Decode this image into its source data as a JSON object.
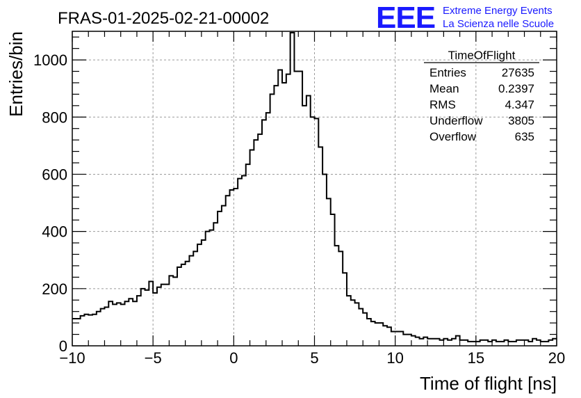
{
  "header": {
    "title": "FRAS-01-2025-02-21-00002",
    "logo_text": "EEE",
    "org_line1": "Extreme Energy Events",
    "org_line2": "La Scienza nelle Scuole",
    "logo_color": "#1a1aff"
  },
  "stats": {
    "name": "TimeOfFlight",
    "rows": [
      {
        "label": "Entries",
        "value": "27635"
      },
      {
        "label": "Mean",
        "value": "0.2397"
      },
      {
        "label": "RMS",
        "value": "4.347"
      },
      {
        "label": "Underflow",
        "value": "3805"
      },
      {
        "label": "Overflow",
        "value": "635"
      }
    ]
  },
  "chart_data": {
    "type": "histogram",
    "title": "FRAS-01-2025-02-21-00002",
    "xlabel": "Time of flight [ns]",
    "ylabel": "Entries/bin",
    "xlim": [
      -10,
      20
    ],
    "ylim": [
      0,
      1100
    ],
    "grid": true,
    "line_color": "#000000",
    "bin_width": 0.25,
    "bin_start": -10,
    "values": [
      95,
      95,
      105,
      110,
      108,
      110,
      120,
      130,
      135,
      155,
      145,
      150,
      145,
      155,
      165,
      155,
      175,
      200,
      195,
      225,
      185,
      205,
      215,
      215,
      245,
      240,
      275,
      285,
      295,
      315,
      330,
      355,
      370,
      400,
      405,
      430,
      470,
      490,
      525,
      545,
      550,
      585,
      595,
      635,
      685,
      720,
      740,
      790,
      815,
      880,
      910,
      965,
      920,
      950,
      1095,
      960,
      960,
      840,
      875,
      800,
      795,
      695,
      600,
      515,
      460,
      350,
      330,
      255,
      175,
      160,
      150,
      130,
      115,
      95,
      85,
      80,
      80,
      70,
      65,
      50,
      50,
      50,
      40,
      40,
      35,
      30,
      25,
      30,
      25,
      25,
      25,
      20,
      25,
      20,
      25,
      35,
      20,
      20,
      15,
      15,
      15,
      20,
      20,
      15,
      20,
      15,
      15,
      20,
      15,
      15,
      20,
      20,
      20,
      15,
      25,
      20,
      15,
      15,
      20,
      25
    ],
    "xticks": [
      "−10",
      "−5",
      "0",
      "5",
      "10",
      "15",
      "20"
    ],
    "xtick_values": [
      -10,
      -5,
      0,
      5,
      10,
      15,
      20
    ],
    "yticks": [
      "0",
      "200",
      "400",
      "600",
      "800",
      "1000"
    ],
    "ytick_values": [
      0,
      200,
      400,
      600,
      800,
      1000
    ]
  }
}
